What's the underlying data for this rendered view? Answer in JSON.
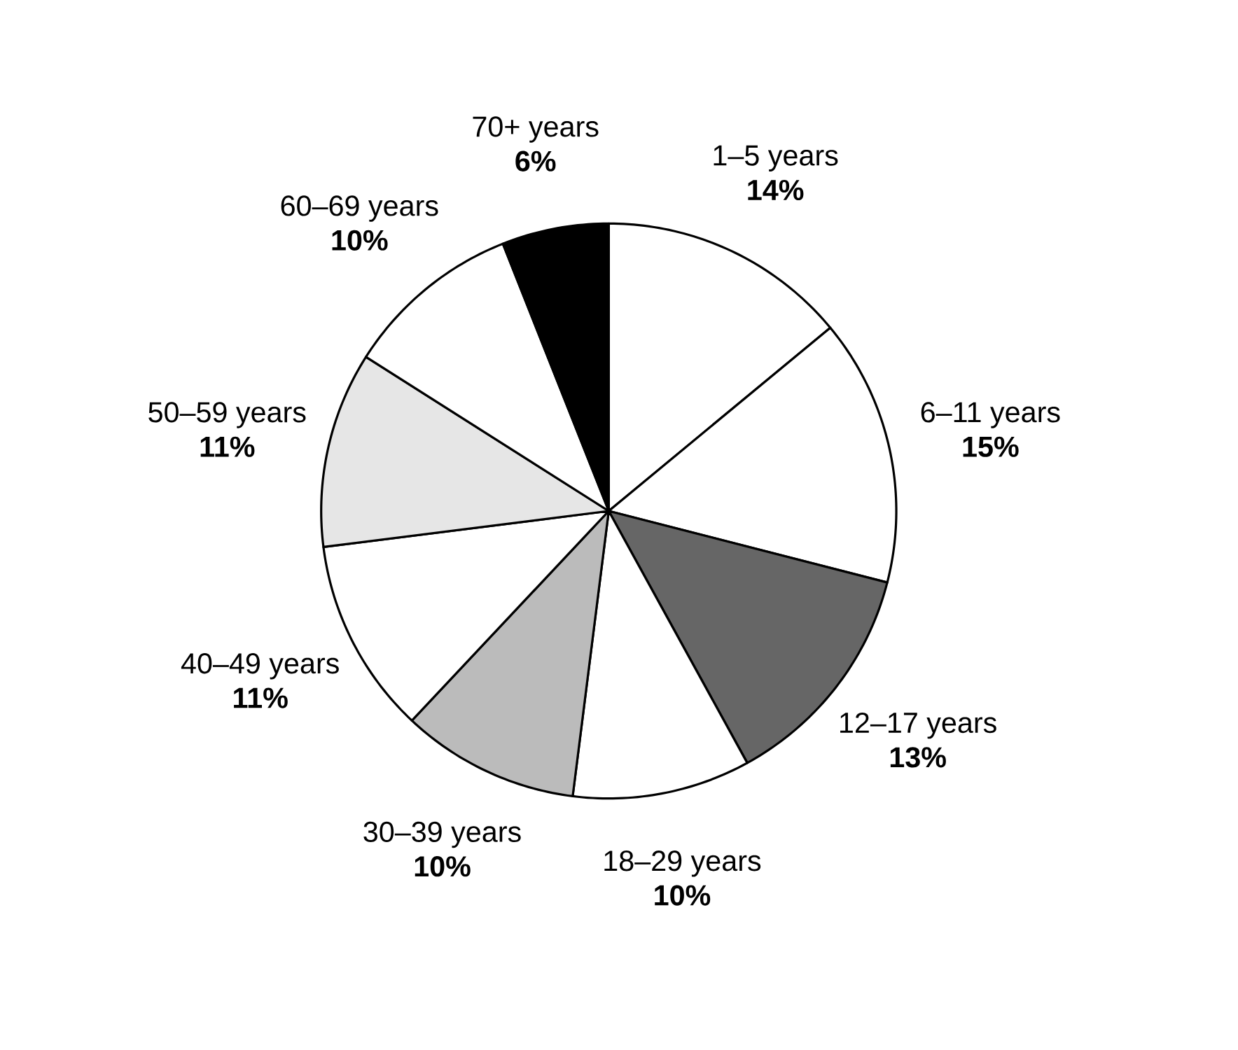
{
  "chart_data": {
    "type": "pie",
    "categories": [
      "1–5 years",
      "6–11 years",
      "12–17 years",
      "18–29 years",
      "30–39 years",
      "40–49 years",
      "50–59 years",
      "60–69 years",
      "70+ years"
    ],
    "values": [
      14,
      15,
      13,
      10,
      10,
      11,
      11,
      10,
      6
    ],
    "value_labels": [
      "14%",
      "15%",
      "13%",
      "10%",
      "10%",
      "11%",
      "11%",
      "10%",
      "6%"
    ],
    "colors": [
      "#ffffff",
      "#ffffff",
      "#666666",
      "#ffffff",
      "#bbbbbb",
      "#ffffff",
      "#e6e6e6",
      "#ffffff",
      "#000000"
    ]
  }
}
